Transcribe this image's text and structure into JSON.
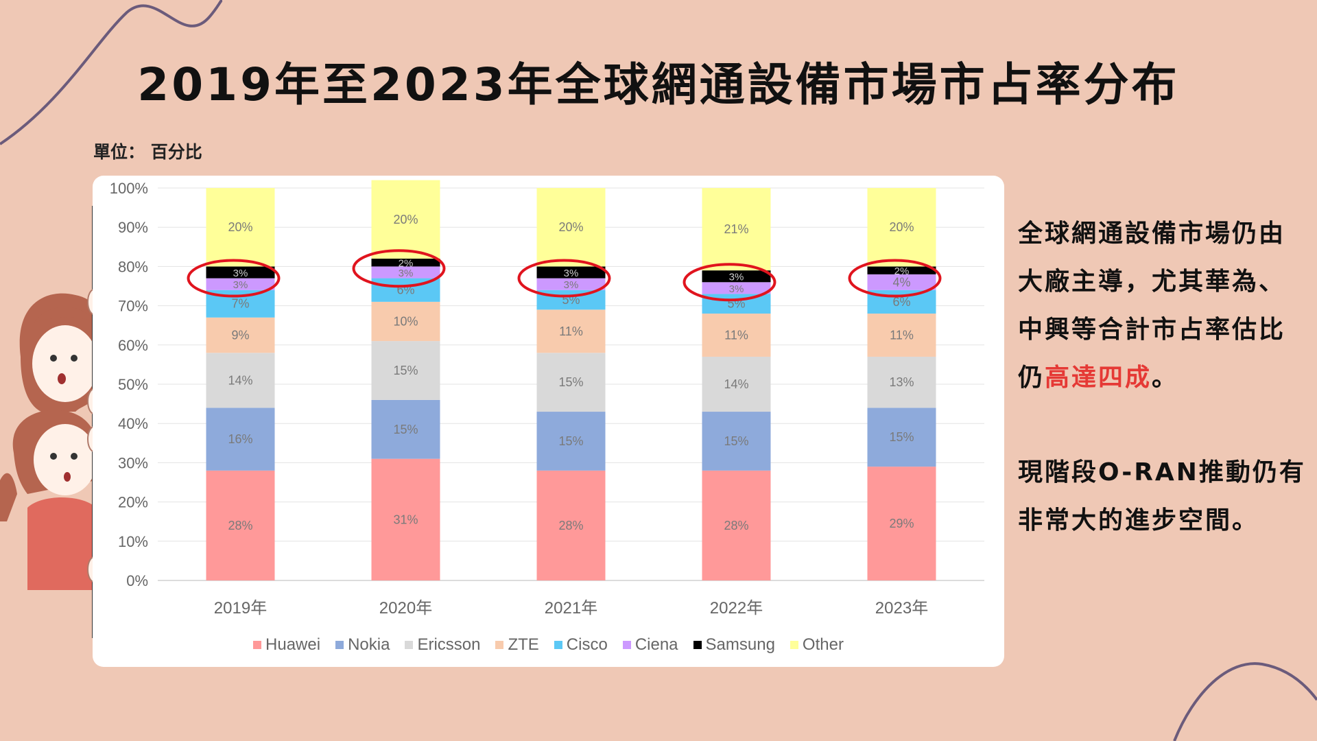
{
  "title": "2019年至2023年全球網通設備市場市占率分布",
  "unit_label": "單位： 百分比",
  "colors": {
    "background": "#efc8b5",
    "highlight": "#e53935",
    "circle": "#e0141e"
  },
  "side_text": {
    "block1_part1": "全球網通設備市場仍由大廠主導，尤其華為、中興等合計市占率估比仍",
    "block1_highlight": "高達四成",
    "block1_part2": "。",
    "block2": "現階段O-RAN推動仍有非常大的進步空間。"
  },
  "chart_data": {
    "type": "bar",
    "stacked": true,
    "categories": [
      "2019年",
      "2020年",
      "2021年",
      "2022年",
      "2023年"
    ],
    "ylim": [
      0,
      100
    ],
    "yticks": [
      "0%",
      "10%",
      "20%",
      "30%",
      "40%",
      "50%",
      "60%",
      "70%",
      "80%",
      "90%",
      "100%"
    ],
    "grid": true,
    "legend_position": "bottom",
    "series": [
      {
        "name": "Huawei",
        "color": "#ff9999",
        "values": [
          28,
          31,
          28,
          28,
          29
        ]
      },
      {
        "name": "Nokia",
        "color": "#8eaadb",
        "values": [
          16,
          15,
          15,
          15,
          15
        ]
      },
      {
        "name": "Ericsson",
        "color": "#d9d9d9",
        "values": [
          14,
          15,
          15,
          14,
          13
        ]
      },
      {
        "name": "ZTE",
        "color": "#f8cbad",
        "values": [
          9,
          10,
          11,
          11,
          11
        ]
      },
      {
        "name": "Cisco",
        "color": "#5bc8f5",
        "values": [
          7,
          6,
          5,
          5,
          6
        ]
      },
      {
        "name": "Ciena",
        "color": "#cc99ff",
        "values": [
          3,
          3,
          3,
          3,
          4
        ]
      },
      {
        "name": "Samsung",
        "color": "#000000",
        "values": [
          3,
          2,
          3,
          3,
          2
        ]
      },
      {
        "name": "Other",
        "color": "#ffff99",
        "values": [
          20,
          20,
          20,
          21,
          20
        ]
      }
    ],
    "circled_series": [
      "Ciena",
      "Samsung"
    ]
  }
}
